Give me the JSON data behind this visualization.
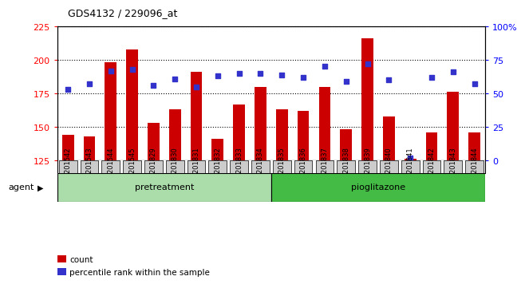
{
  "title": "GDS4132 / 229096_at",
  "samples": [
    "GSM201542",
    "GSM201543",
    "GSM201544",
    "GSM201545",
    "GSM201829",
    "GSM201830",
    "GSM201831",
    "GSM201832",
    "GSM201833",
    "GSM201834",
    "GSM201835",
    "GSM201836",
    "GSM201837",
    "GSM201838",
    "GSM201839",
    "GSM201840",
    "GSM201841",
    "GSM201842",
    "GSM201843",
    "GSM201844"
  ],
  "counts": [
    144,
    143,
    198,
    208,
    153,
    163,
    191,
    141,
    167,
    180,
    163,
    162,
    180,
    148,
    216,
    158,
    126,
    146,
    176,
    146
  ],
  "percentiles": [
    53,
    57,
    67,
    68,
    56,
    61,
    55,
    63,
    65,
    65,
    64,
    62,
    70,
    59,
    72,
    60,
    2,
    62,
    66,
    57
  ],
  "pretreatment_count": 10,
  "pioglitazone_count": 10,
  "ylim_left": [
    125,
    225
  ],
  "ylim_right": [
    0,
    100
  ],
  "yticks_left": [
    125,
    150,
    175,
    200,
    225
  ],
  "yticks_right": [
    0,
    25,
    50,
    75,
    100
  ],
  "bar_color": "#cc0000",
  "dot_color": "#3333cc",
  "pretreatment_color": "#aaddaa",
  "pioglitazone_color": "#44bb44",
  "agent_label": "agent",
  "pretreatment_label": "pretreatment",
  "pioglitazone_label": "pioglitazone",
  "legend_count_label": "count",
  "legend_percentile_label": "percentile rank within the sample",
  "background_color": "#ffffff",
  "axis_bg_color": "#ffffff",
  "tick_bg_color": "#cccccc",
  "bar_baseline": 125
}
